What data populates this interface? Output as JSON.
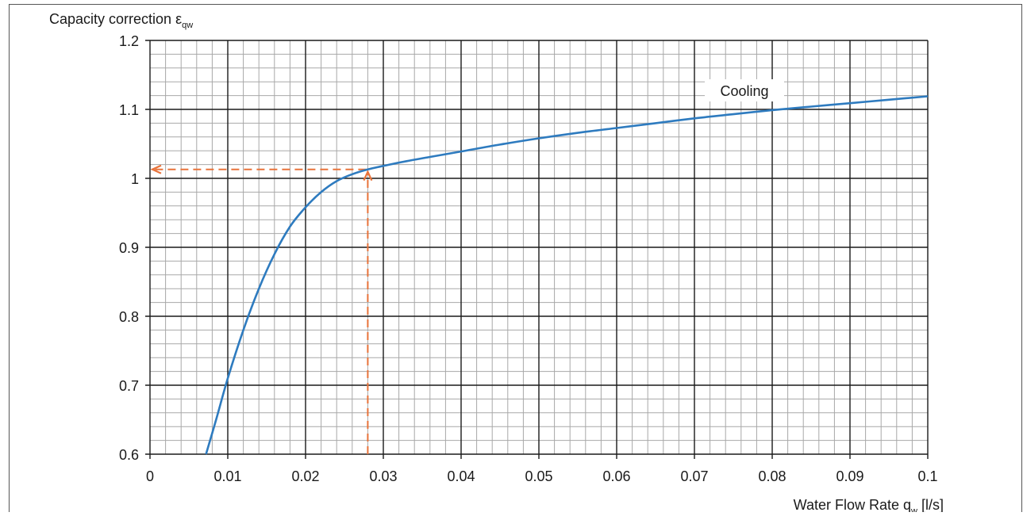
{
  "chart_data": {
    "type": "line",
    "ylabel": "Capacity correction ε",
    "ylabel_subscript": "qw",
    "xlabel": "Water Flow Rate  q",
    "xlabel_subscript": "w",
    "xlabel_unit": "[l/s]",
    "xlim": [
      0,
      0.1
    ],
    "ylim": [
      0.6,
      1.2
    ],
    "x_ticks": [
      0,
      0.01,
      0.02,
      0.03,
      0.04,
      0.05,
      0.06,
      0.07,
      0.08,
      0.09,
      0.1
    ],
    "x_tick_labels": [
      "0",
      "0.01",
      "0.02",
      "0.03",
      "0.04",
      "0.05",
      "0.06",
      "0.07",
      "0.08",
      "0.09",
      "0.1"
    ],
    "y_ticks": [
      0.6,
      0.7,
      0.8,
      0.9,
      1.0,
      1.1,
      1.2
    ],
    "y_tick_labels": [
      "0.6",
      "0.7",
      "0.8",
      "0.9",
      "1",
      "1.1",
      "1.2"
    ],
    "grid": true,
    "minor_grid_per_major": 5,
    "series": [
      {
        "name": "Cooling",
        "color": "#2e7bbf",
        "x": [
          0.0072,
          0.0085,
          0.01,
          0.012,
          0.014,
          0.016,
          0.018,
          0.02,
          0.022,
          0.024,
          0.026,
          0.028,
          0.03,
          0.033,
          0.036,
          0.04,
          0.045,
          0.05,
          0.055,
          0.06,
          0.065,
          0.07,
          0.075,
          0.08,
          0.085,
          0.09,
          0.095,
          0.1
        ],
        "y": [
          0.6,
          0.65,
          0.71,
          0.78,
          0.84,
          0.89,
          0.93,
          0.958,
          0.98,
          0.996,
          1.006,
          1.013,
          1.018,
          1.025,
          1.031,
          1.039,
          1.049,
          1.058,
          1.066,
          1.073,
          1.08,
          1.087,
          1.093,
          1.099,
          1.104,
          1.109,
          1.114,
          1.119
        ]
      }
    ],
    "annotations": [
      {
        "type": "guide",
        "color": "#e8733a",
        "x": 0.028,
        "y": 1.013,
        "arrows": [
          "up",
          "left"
        ]
      }
    ]
  }
}
